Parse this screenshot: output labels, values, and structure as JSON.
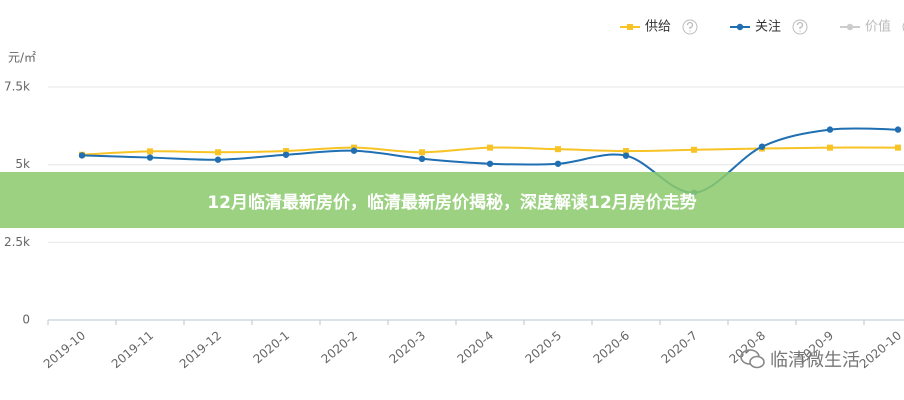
{
  "chart_data": {
    "type": "line",
    "y_unit": "元/㎡",
    "categories": [
      "2019-10",
      "2019-11",
      "2019-12",
      "2020-1",
      "2020-2",
      "2020-3",
      "2020-4",
      "2020-5",
      "2020-6",
      "2020-7",
      "2020-8",
      "2020-9",
      "2020-10"
    ],
    "series": [
      {
        "name": "供给",
        "color": "#f7c325",
        "marker": "square",
        "values": [
          5320,
          5430,
          5400,
          5440,
          5550,
          5400,
          5550,
          5500,
          5440,
          5480,
          5520,
          5550,
          5550
        ]
      },
      {
        "name": "关注",
        "color": "#1f6fb2",
        "marker": "circle",
        "values": [
          5300,
          5230,
          5160,
          5320,
          5450,
          5190,
          5030,
          5030,
          5290,
          4100,
          5580,
          6130,
          6130
        ]
      },
      {
        "name": "价值",
        "color": "#cccccc",
        "hidden": true,
        "values": [
          null,
          null,
          null,
          null,
          null,
          null,
          null,
          null,
          null,
          null,
          null,
          null,
          null
        ]
      }
    ],
    "ylim": [
      0,
      8500
    ],
    "yticks": [
      0,
      {
        "value": 2500,
        "label": "2.5k"
      },
      {
        "value": 5000,
        "label": "5k"
      },
      {
        "value": 7500,
        "label": "7.5k"
      }
    ],
    "grid": true,
    "legend": "top-right"
  },
  "banner": {
    "title": "12月临清最新房价，临清最新房价揭秘，深度解读12月房价走势"
  },
  "watermark": {
    "text": "临清微生活"
  }
}
